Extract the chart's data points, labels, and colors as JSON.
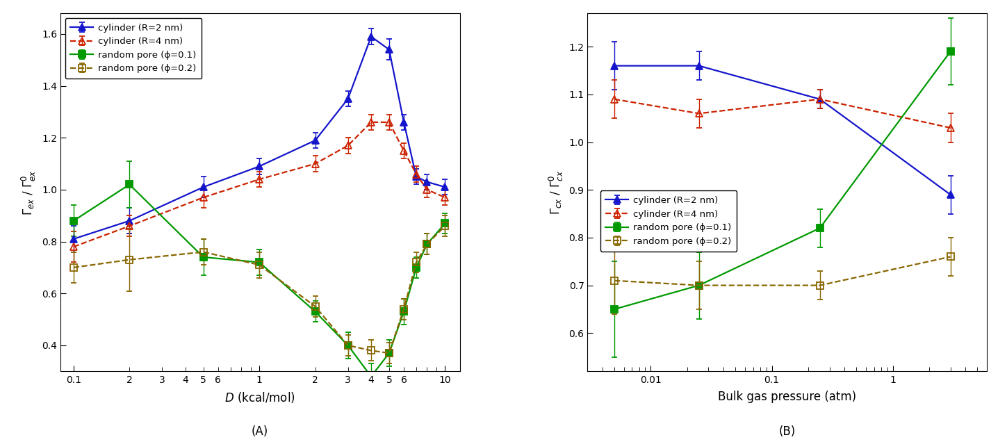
{
  "panel_A": {
    "title": "(A)",
    "xlabel_italic": "D",
    "xlabel_rest": " (kcal/mol)",
    "ylabel_top": "Γ_ex",
    "ylabel_bot": "Γ_ex°",
    "xlim": [
      0.085,
      12.0
    ],
    "ylim": [
      0.3,
      1.68
    ],
    "yticks": [
      0.4,
      0.6,
      0.8,
      1.0,
      1.2,
      1.4,
      1.6
    ],
    "series": {
      "cyl2": {
        "label": "cylinder (R=2 nm)",
        "color": "#1515cc",
        "linestyle": "-",
        "marker": "^",
        "markerfacecolor": "#1515cc",
        "markeredgecolor": "#1515cc",
        "x": [
          0.1,
          0.2,
          0.5,
          1.0,
          2.0,
          3.0,
          4.0,
          5.0,
          6.0,
          7.0,
          8.0,
          10.0
        ],
        "y": [
          0.81,
          0.88,
          1.01,
          1.09,
          1.19,
          1.35,
          1.59,
          1.54,
          1.26,
          1.05,
          1.03,
          1.01
        ],
        "yerr": [
          0.05,
          0.05,
          0.04,
          0.03,
          0.03,
          0.03,
          0.03,
          0.04,
          0.03,
          0.03,
          0.03,
          0.03
        ]
      },
      "cyl4": {
        "label": "cylinder (R=4 nm)",
        "color": "#cc2200",
        "linestyle": "--",
        "marker": "^",
        "markerfacecolor": "none",
        "markeredgecolor": "#cc2200",
        "x": [
          0.1,
          0.2,
          0.5,
          1.0,
          2.0,
          3.0,
          4.0,
          5.0,
          6.0,
          7.0,
          8.0,
          10.0
        ],
        "y": [
          0.78,
          0.86,
          0.97,
          1.04,
          1.1,
          1.17,
          1.26,
          1.26,
          1.15,
          1.06,
          1.0,
          0.97
        ],
        "yerr": [
          0.06,
          0.04,
          0.04,
          0.03,
          0.03,
          0.03,
          0.03,
          0.03,
          0.03,
          0.03,
          0.03,
          0.03
        ]
      },
      "rp01": {
        "label": "random pore (ϕ=0.1)",
        "color": "#009900",
        "linestyle": "-",
        "marker": "s",
        "markerfacecolor": "#009900",
        "markeredgecolor": "#009900",
        "x": [
          0.1,
          0.2,
          0.5,
          1.0,
          2.0,
          3.0,
          4.0,
          5.0,
          6.0,
          7.0,
          8.0,
          10.0
        ],
        "y": [
          0.88,
          1.02,
          0.74,
          0.72,
          0.53,
          0.4,
          0.28,
          0.37,
          0.53,
          0.7,
          0.79,
          0.87
        ],
        "yerr": [
          0.06,
          0.09,
          0.07,
          0.05,
          0.04,
          0.05,
          0.05,
          0.05,
          0.05,
          0.04,
          0.04,
          0.04
        ]
      },
      "rp02": {
        "label": "random pore (ϕ=0.2)",
        "color": "#886600",
        "linestyle": "--",
        "marker": "s",
        "markerfacecolor": "none",
        "markeredgecolor": "#886600",
        "x": [
          0.1,
          0.2,
          0.5,
          1.0,
          2.0,
          3.0,
          4.0,
          5.0,
          6.0,
          7.0,
          8.0,
          10.0
        ],
        "y": [
          0.7,
          0.73,
          0.76,
          0.71,
          0.55,
          0.4,
          0.38,
          0.37,
          0.54,
          0.72,
          0.79,
          0.86
        ],
        "yerr": [
          0.06,
          0.12,
          0.05,
          0.05,
          0.04,
          0.04,
          0.04,
          0.04,
          0.04,
          0.04,
          0.04,
          0.04
        ]
      }
    }
  },
  "panel_B": {
    "title": "(B)",
    "xlabel": "Bulk gas pressure (atm)",
    "ylabel_top": "Γ_cx",
    "ylabel_bot": "Γ_cx°",
    "xlim": [
      0.003,
      6.0
    ],
    "ylim": [
      0.52,
      1.27
    ],
    "yticks": [
      0.6,
      0.7,
      0.8,
      0.9,
      1.0,
      1.1,
      1.2
    ],
    "series": {
      "cyl2": {
        "label": "cylinder (R=2 nm)",
        "color": "#1515cc",
        "linestyle": "-",
        "marker": "^",
        "markerfacecolor": "#1515cc",
        "markeredgecolor": "#1515cc",
        "x": [
          0.005,
          0.025,
          0.25,
          3.0
        ],
        "y": [
          1.16,
          1.16,
          1.09,
          0.89
        ],
        "yerr": [
          0.05,
          0.03,
          0.02,
          0.04
        ]
      },
      "cyl4": {
        "label": "cylinder (R=4 nm)",
        "color": "#cc2200",
        "linestyle": "--",
        "marker": "^",
        "markerfacecolor": "none",
        "markeredgecolor": "#cc2200",
        "x": [
          0.005,
          0.025,
          0.25,
          3.0
        ],
        "y": [
          1.09,
          1.06,
          1.09,
          1.03
        ],
        "yerr": [
          0.04,
          0.03,
          0.02,
          0.03
        ]
      },
      "rp01": {
        "label": "random pore (ϕ=0.1)",
        "color": "#009900",
        "linestyle": "-",
        "marker": "s",
        "markerfacecolor": "#009900",
        "markeredgecolor": "#009900",
        "x": [
          0.005,
          0.025,
          0.25,
          3.0
        ],
        "y": [
          0.65,
          0.7,
          0.82,
          1.19
        ],
        "yerr": [
          0.1,
          0.07,
          0.04,
          0.07
        ]
      },
      "rp02": {
        "label": "random pore (ϕ=0.2)",
        "color": "#886600",
        "linestyle": "--",
        "marker": "s",
        "markerfacecolor": "none",
        "markeredgecolor": "#886600",
        "x": [
          0.005,
          0.025,
          0.25,
          3.0
        ],
        "y": [
          0.71,
          0.7,
          0.7,
          0.76
        ],
        "yerr": [
          0.07,
          0.05,
          0.03,
          0.04
        ]
      }
    }
  }
}
